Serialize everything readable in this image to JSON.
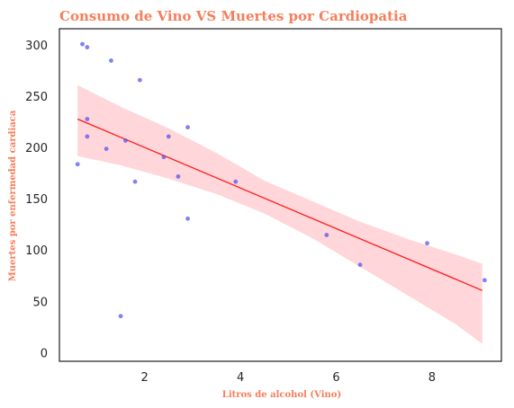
{
  "chart_data": {
    "type": "scatter",
    "title": "Consumo de Vino VS Muertes por Cardiopatia",
    "xlabel": "Litros de alcohol (Vino)",
    "ylabel": "Muertes por enfermedad cardiaca",
    "xlim": [
      0.22,
      9.45
    ],
    "ylim": [
      -8,
      316
    ],
    "xticks": [
      2,
      4,
      6,
      8
    ],
    "yticks": [
      0,
      50,
      100,
      150,
      200,
      250,
      300
    ],
    "grid": false,
    "points": [
      {
        "x": 0.6,
        "y": 184
      },
      {
        "x": 0.7,
        "y": 301
      },
      {
        "x": 0.8,
        "y": 298
      },
      {
        "x": 0.8,
        "y": 228
      },
      {
        "x": 0.8,
        "y": 211
      },
      {
        "x": 1.2,
        "y": 199
      },
      {
        "x": 1.3,
        "y": 285
      },
      {
        "x": 1.5,
        "y": 36
      },
      {
        "x": 1.6,
        "y": 207
      },
      {
        "x": 1.8,
        "y": 167
      },
      {
        "x": 1.9,
        "y": 266
      },
      {
        "x": 2.4,
        "y": 191
      },
      {
        "x": 2.5,
        "y": 211
      },
      {
        "x": 2.7,
        "y": 172
      },
      {
        "x": 2.9,
        "y": 131
      },
      {
        "x": 2.9,
        "y": 220
      },
      {
        "x": 3.9,
        "y": 167
      },
      {
        "x": 5.8,
        "y": 115
      },
      {
        "x": 6.5,
        "y": 86
      },
      {
        "x": 7.9,
        "y": 107
      },
      {
        "x": 9.1,
        "y": 71
      }
    ],
    "regression": {
      "x": [
        0.6,
        9.05
      ],
      "y": [
        228,
        61
      ],
      "ci_upper": [
        {
          "x": 0.6,
          "y": 261
        },
        {
          "x": 1.5,
          "y": 240
        },
        {
          "x": 2.5,
          "y": 219
        },
        {
          "x": 3.5,
          "y": 195
        },
        {
          "x": 4.5,
          "y": 168
        },
        {
          "x": 5.5,
          "y": 148
        },
        {
          "x": 6.5,
          "y": 128
        },
        {
          "x": 7.5,
          "y": 111
        },
        {
          "x": 8.5,
          "y": 96
        },
        {
          "x": 9.05,
          "y": 87
        }
      ],
      "ci_lower": [
        {
          "x": 0.6,
          "y": 192
        },
        {
          "x": 1.5,
          "y": 183
        },
        {
          "x": 2.5,
          "y": 170
        },
        {
          "x": 3.5,
          "y": 155
        },
        {
          "x": 4.5,
          "y": 136
        },
        {
          "x": 5.5,
          "y": 112
        },
        {
          "x": 6.5,
          "y": 84
        },
        {
          "x": 7.5,
          "y": 56
        },
        {
          "x": 8.5,
          "y": 28
        },
        {
          "x": 9.05,
          "y": 9
        }
      ]
    },
    "colors": {
      "points": "#4c4cf0",
      "line": "#ff1a1a",
      "band": "#ffd6d9",
      "title": "#f47f5b",
      "frame": "#262626"
    }
  }
}
